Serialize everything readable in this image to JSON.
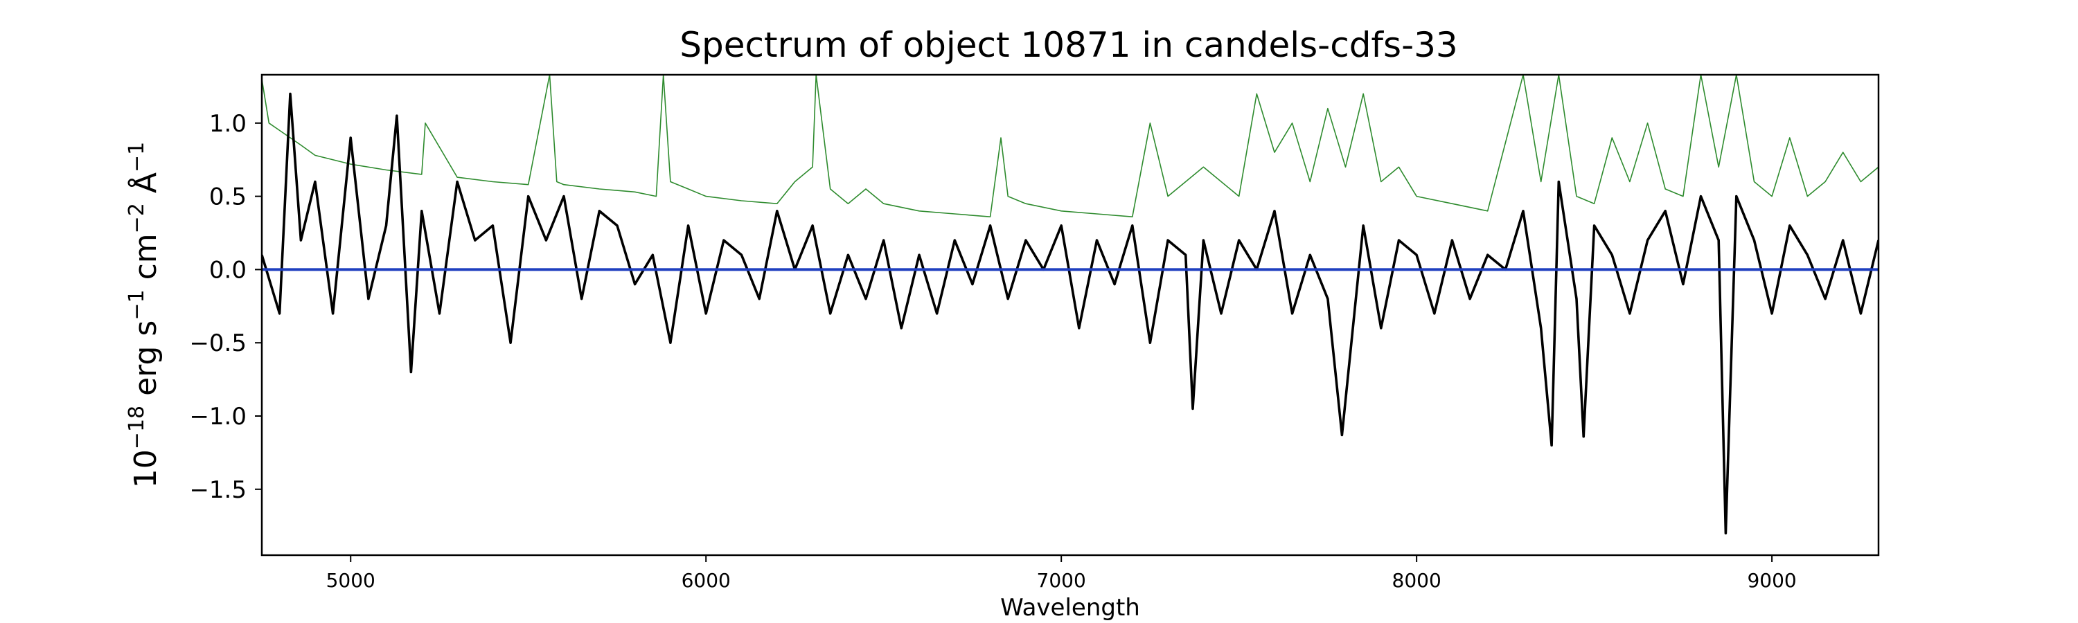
{
  "chart_data": {
    "type": "line",
    "title": "Spectrum of object 10871 in candels-cdfs-33",
    "xlabel": "Wavelength",
    "ylabel_prefix": "10",
    "ylabel_exponent": "−18",
    "ylabel_rest": " erg s",
    "ylabel_s_exp": "−1",
    "ylabel_cm": " cm",
    "ylabel_cm_exp": "−2",
    "ylabel_ang": " Å",
    "ylabel_ang_exp": "−1",
    "xlim": [
      4750,
      9300
    ],
    "ylim": [
      -1.95,
      1.33
    ],
    "x_ticks": [
      5000,
      6000,
      7000,
      8000,
      9000
    ],
    "x_tick_labels": [
      "5000",
      "6000",
      "7000",
      "8000",
      "9000"
    ],
    "y_ticks": [
      -1.5,
      -1.0,
      -0.5,
      0.0,
      0.5,
      1.0
    ],
    "y_tick_labels": [
      "−1.5",
      "−1.0",
      "−0.5",
      "0.0",
      "0.5",
      "1.0"
    ],
    "grid": false,
    "legend": "none",
    "series": [
      {
        "role": "flux",
        "color": "#000000",
        "x": [
          4750,
          4800,
          4830,
          4860,
          4900,
          4950,
          5000,
          5050,
          5100,
          5130,
          5170,
          5200,
          5250,
          5300,
          5350,
          5400,
          5450,
          5500,
          5550,
          5600,
          5650,
          5700,
          5750,
          5800,
          5850,
          5900,
          5950,
          6000,
          6050,
          6100,
          6150,
          6200,
          6250,
          6300,
          6350,
          6400,
          6450,
          6500,
          6550,
          6600,
          6650,
          6700,
          6750,
          6800,
          6850,
          6900,
          6950,
          7000,
          7050,
          7100,
          7150,
          7200,
          7250,
          7300,
          7350,
          7370,
          7400,
          7450,
          7500,
          7550,
          7600,
          7650,
          7700,
          7750,
          7790,
          7850,
          7900,
          7950,
          8000,
          8050,
          8100,
          8150,
          8200,
          8250,
          8300,
          8350,
          8380,
          8400,
          8450,
          8470,
          8500,
          8550,
          8600,
          8650,
          8700,
          8750,
          8800,
          8850,
          8870,
          8900,
          8950,
          9000,
          9050,
          9100,
          9150,
          9200,
          9250,
          9300
        ],
        "y": [
          0.1,
          -0.3,
          1.2,
          0.2,
          0.6,
          -0.3,
          0.9,
          -0.2,
          0.3,
          1.05,
          -0.7,
          0.4,
          -0.3,
          0.6,
          0.2,
          0.3,
          -0.5,
          0.5,
          0.2,
          0.5,
          -0.2,
          0.4,
          0.3,
          -0.1,
          0.1,
          -0.5,
          0.3,
          -0.3,
          0.2,
          0.1,
          -0.2,
          0.4,
          0.0,
          0.3,
          -0.3,
          0.1,
          -0.2,
          0.2,
          -0.4,
          0.1,
          -0.3,
          0.2,
          -0.1,
          0.3,
          -0.2,
          0.2,
          0.0,
          0.3,
          -0.4,
          0.2,
          -0.1,
          0.3,
          -0.5,
          0.2,
          0.1,
          -0.95,
          0.2,
          -0.3,
          0.2,
          0.0,
          0.4,
          -0.3,
          0.1,
          -0.2,
          -1.13,
          0.3,
          -0.4,
          0.2,
          0.1,
          -0.3,
          0.2,
          -0.2,
          0.1,
          0.0,
          0.4,
          -0.4,
          -1.2,
          0.6,
          -0.2,
          -1.14,
          0.3,
          0.1,
          -0.3,
          0.2,
          0.4,
          -0.1,
          0.5,
          0.2,
          -1.8,
          0.5,
          0.2,
          -0.3,
          0.3,
          0.1,
          -0.2,
          0.2,
          -0.3,
          0.2
        ]
      },
      {
        "role": "error",
        "color": "#2e8b2e",
        "x": [
          4750,
          4770,
          4800,
          4830,
          4860,
          4900,
          5000,
          5100,
          5200,
          5210,
          5300,
          5400,
          5500,
          5560,
          5580,
          5600,
          5700,
          5800,
          5860,
          5880,
          5900,
          5950,
          6000,
          6100,
          6200,
          6250,
          6300,
          6310,
          6350,
          6400,
          6450,
          6500,
          6600,
          6700,
          6800,
          6830,
          6850,
          6900,
          7000,
          7100,
          7200,
          7250,
          7300,
          7400,
          7500,
          7550,
          7600,
          7650,
          7700,
          7750,
          7800,
          7850,
          7900,
          7950,
          8000,
          8100,
          8200,
          8300,
          8350,
          8400,
          8450,
          8500,
          8550,
          8600,
          8650,
          8700,
          8750,
          8800,
          8850,
          8900,
          8950,
          9000,
          9050,
          9100,
          9150,
          9200,
          9250,
          9300
        ],
        "y": [
          1.3,
          1.0,
          0.95,
          0.9,
          0.85,
          0.78,
          0.72,
          0.68,
          0.65,
          1.0,
          0.63,
          0.6,
          0.58,
          1.33,
          0.6,
          0.58,
          0.55,
          0.53,
          0.5,
          1.33,
          0.6,
          0.55,
          0.5,
          0.47,
          0.45,
          0.6,
          0.7,
          1.33,
          0.55,
          0.45,
          0.55,
          0.45,
          0.4,
          0.38,
          0.36,
          0.9,
          0.5,
          0.45,
          0.4,
          0.38,
          0.36,
          1.0,
          0.5,
          0.7,
          0.5,
          1.2,
          0.8,
          1.0,
          0.6,
          1.1,
          0.7,
          1.2,
          0.6,
          0.7,
          0.5,
          0.45,
          0.4,
          1.33,
          0.6,
          1.33,
          0.5,
          0.45,
          0.9,
          0.6,
          1.0,
          0.55,
          0.5,
          1.33,
          0.7,
          1.33,
          0.6,
          0.5,
          0.9,
          0.5,
          0.6,
          0.8,
          0.6,
          0.7
        ]
      },
      {
        "role": "zero",
        "color": "#1f3fbf",
        "x": [
          4750,
          9300
        ],
        "y": [
          0.0,
          0.0
        ]
      }
    ]
  }
}
